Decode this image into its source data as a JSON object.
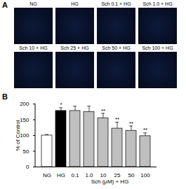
{
  "panel_A": {
    "label": "A",
    "images": [
      "NG",
      "HG",
      "Sch 0.1 + HG",
      "Sch 1.0 + HG",
      "Sch 10 + HG",
      "Sch 25 + HG",
      "Sch 50 + HG",
      "Sch 100 + HG"
    ]
  },
  "chart_data": {
    "type": "bar",
    "panel_label": "B",
    "categories": [
      "NG",
      "HG",
      "0.1",
      "1.0",
      "10",
      "25",
      "50",
      "100"
    ],
    "values": [
      100,
      178,
      178,
      175,
      155,
      122,
      115,
      98
    ],
    "errors": [
      3,
      10,
      15,
      18,
      15,
      20,
      15,
      10
    ],
    "significance": [
      null,
      "*",
      null,
      null,
      "**",
      "**",
      "**",
      "**"
    ],
    "colors": [
      "#ffffff",
      "#000000",
      "#bfbfbf",
      "#bfbfbf",
      "#bfbfbf",
      "#bfbfbf",
      "#bfbfbf",
      "#bfbfbf"
    ],
    "ylabel": "% of Control",
    "xlabel": "Sch (μM) + HG",
    "ylim": [
      0,
      200
    ],
    "yticks": [
      0,
      50,
      100,
      150,
      200
    ],
    "grid": false
  }
}
